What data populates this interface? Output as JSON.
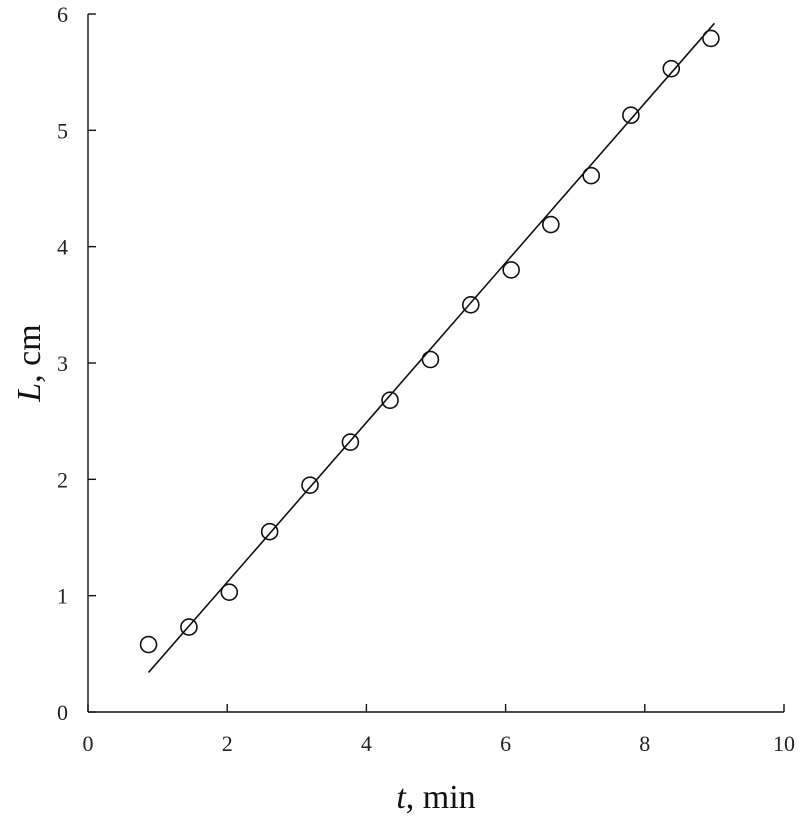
{
  "chart_data": {
    "type": "scatter",
    "title": "",
    "xlabel": {
      "var": "t",
      "unit": ", min"
    },
    "ylabel": {
      "var": "L",
      "unit": ", cm"
    },
    "xlim": [
      0,
      10
    ],
    "ylim": [
      0,
      6
    ],
    "xticks": [
      0,
      2,
      4,
      6,
      8,
      10
    ],
    "yticks": [
      0,
      1,
      2,
      3,
      4,
      5,
      6
    ],
    "grid": false,
    "series": [
      {
        "marker": "open-circle",
        "x": [
          0.87,
          1.45,
          2.03,
          2.61,
          3.19,
          3.77,
          4.34,
          4.92,
          5.5,
          6.08,
          6.65,
          7.23,
          7.8,
          8.38,
          8.95
        ],
        "y": [
          0.58,
          0.73,
          1.03,
          1.55,
          1.95,
          2.32,
          2.68,
          3.03,
          3.5,
          3.8,
          4.19,
          4.61,
          5.13,
          5.53,
          5.79
        ]
      }
    ],
    "fit_line": {
      "x": [
        0.87,
        9.0
      ],
      "y": [
        0.34,
        5.92
      ]
    }
  }
}
